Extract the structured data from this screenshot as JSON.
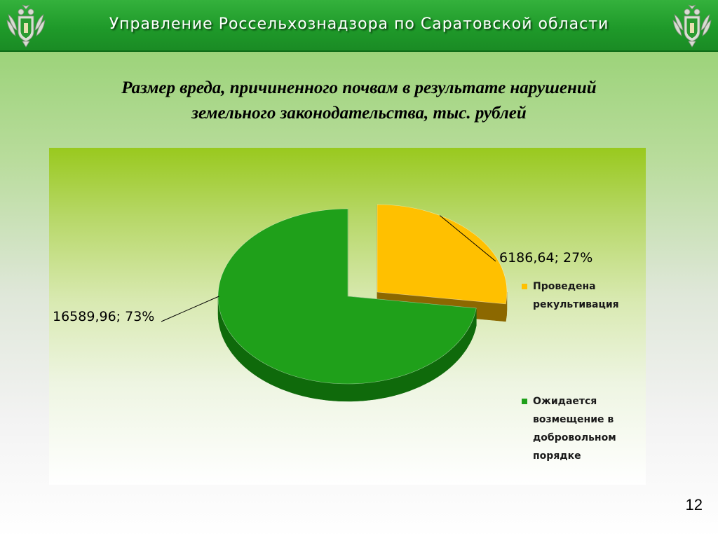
{
  "header": {
    "title": "Управление Россельхознадзора по Саратовской области"
  },
  "slide": {
    "title_line1": "Размер вреда, причиненного почвам в результате нарушений",
    "title_line2": "земельного законодательства, тыс. рублей",
    "page_number": "12"
  },
  "chart_data": {
    "type": "pie",
    "title": "",
    "series": [
      {
        "values": [
          6186.64,
          16589.96
        ],
        "labels": [
          "6186,64; 27%",
          "16589,96; 73%"
        ],
        "percents": [
          27,
          73
        ]
      }
    ],
    "categories": [
      "Проведена рекультивация",
      "Ожидается возмещение в добровольном порядке"
    ],
    "legend": {
      "placement": "right",
      "items": [
        {
          "lines": [
            "Проведена",
            "рекультивация"
          ]
        },
        {
          "lines": [
            "Ожидается",
            "возмещение в",
            "добровольном",
            "порядке"
          ]
        }
      ]
    },
    "colors": [
      "#ffc000",
      "#1fa01a"
    ],
    "side_colors": [
      "#8c6800",
      "#0f6a0b"
    ],
    "exploded": true,
    "style": "3d"
  }
}
